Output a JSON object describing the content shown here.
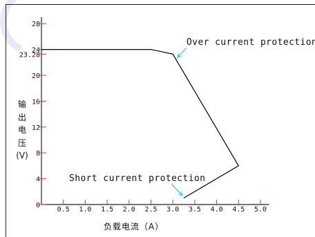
{
  "chart_data": {
    "type": "line",
    "series": [
      {
        "x": [
          0,
          2.5,
          3.0,
          4.5,
          3.25
        ],
        "y": [
          24,
          24,
          23.28,
          6,
          1
        ]
      }
    ],
    "xticks": [
      "0.5",
      "1.0",
      "1.5",
      "2.0",
      "2.5",
      "3.0",
      "3.5",
      "4.0",
      "4.5",
      "5.0"
    ],
    "yticks": [
      "0",
      "4",
      "8",
      "12",
      "16",
      "20",
      "23.28",
      "24",
      "28"
    ],
    "xlim": [
      0,
      5.2
    ],
    "ylim": [
      0,
      29
    ],
    "xlabel": "负载电流（A）",
    "ylabel": [
      "输",
      "出",
      "电",
      "压",
      "(V)"
    ],
    "annotations": [
      {
        "text": "Over current protection",
        "points_to": [
          3.0,
          23.28
        ]
      },
      {
        "text": "Short current protection",
        "points_to": [
          3.25,
          1
        ]
      }
    ],
    "grid": false
  },
  "colors": {
    "axis": "#222222",
    "tick": "#e0323c",
    "line": "#000000",
    "arrow": "#2ec7e6",
    "logo": "#e8e6f4"
  }
}
